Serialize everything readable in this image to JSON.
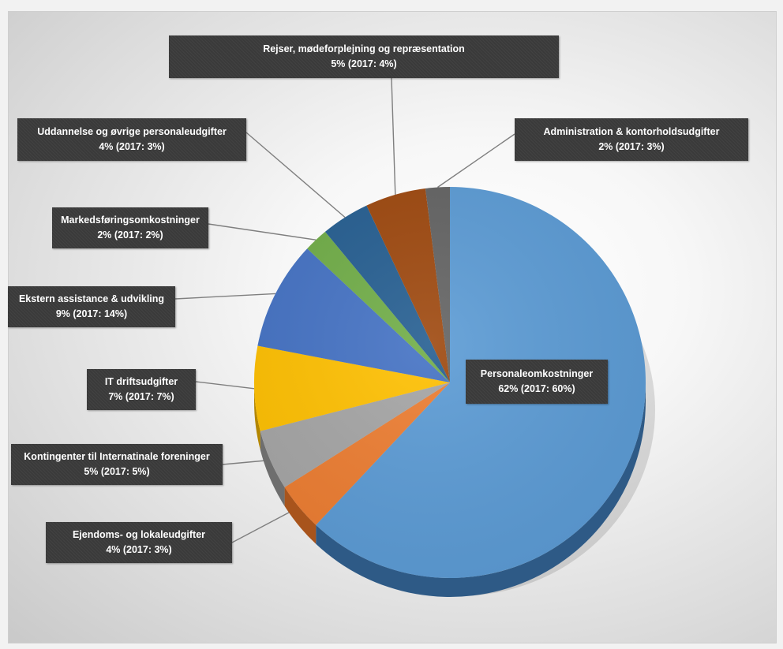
{
  "chart_data": {
    "type": "pie",
    "title": "",
    "slices": [
      {
        "label": "Personaleomkostninger",
        "value_text": "62% (2017: 60%)",
        "value": 62,
        "prev": 60,
        "color": "#5b9bd5",
        "dark": "#2e5a86"
      },
      {
        "label": "Ejendoms- og lokaleudgifter",
        "value_text": "4% (2017: 3%)",
        "value": 4,
        "prev": 3,
        "color": "#ed7d31",
        "dark": "#a8541c"
      },
      {
        "label": "Kontingenter til Internatinale foreninger",
        "value_text": "5% (2017: 5%)",
        "value": 5,
        "prev": 5,
        "color": "#a5a5a5",
        "dark": "#6e6e6e"
      },
      {
        "label": "IT driftsudgifter",
        "value_text": "7% (2017: 7%)",
        "value": 7,
        "prev": 7,
        "color": "#ffc000",
        "dark": "#b38600"
      },
      {
        "label": "Ekstern assistance & udvikling",
        "value_text": "9% (2017: 14%)",
        "value": 9,
        "prev": 14,
        "color": "#4472c4",
        "dark": "#2b4a80"
      },
      {
        "label": "Markedsføringsomkostninger",
        "value_text": "2% (2017: 2%)",
        "value": 2,
        "prev": 2,
        "color": "#70ad47",
        "dark": "#4a7530"
      },
      {
        "label": "Uddannelse og øvrige personaleudgifter",
        "value_text": "4% (2017: 3%)",
        "value": 4,
        "prev": 3,
        "color": "#255e91",
        "dark": "#163a5a"
      },
      {
        "label": "Rejser, mødeforplejning og repræsentation",
        "value_text": "5% (2017: 4%)",
        "value": 5,
        "prev": 4,
        "color": "#9e480e",
        "dark": "#6a2f08"
      },
      {
        "label": "Administration & kontorholdsudgifter",
        "value_text": "2% (2017: 3%)",
        "value": 2,
        "prev": 3,
        "color": "#636363",
        "dark": "#3f3f3f"
      }
    ]
  }
}
